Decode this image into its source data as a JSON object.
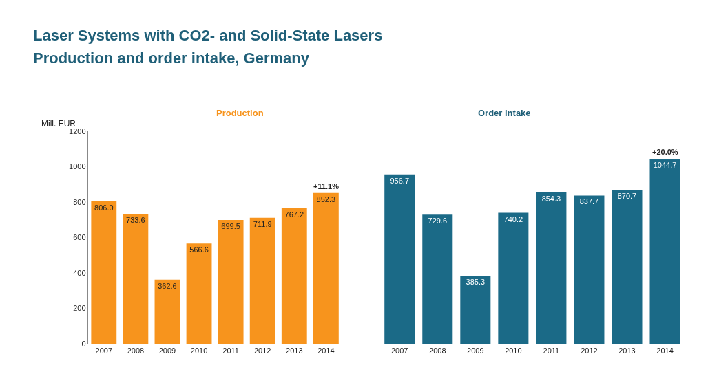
{
  "chart_data": [
    {
      "type": "bar",
      "title": "Production",
      "ylabel": "Mill. EUR",
      "annotations": [
        "Laser Systems with CO2- and Solid-State Lasers",
        "Production and order intake, Germany",
        {
          "text": "+11.1%",
          "x": "2014",
          "y": 852.3
        }
      ],
      "categories": [
        "2007",
        "2008",
        "2009",
        "2010",
        "2011",
        "2012",
        "2013",
        "2014"
      ],
      "values": [
        806.0,
        733.6,
        362.6,
        566.6,
        699.5,
        711.9,
        767.2,
        852.3
      ],
      "value_labels": [
        "806.0",
        "733.6",
        "362.6",
        "566.6",
        "699.5",
        "711.9",
        "767.2",
        "852.3"
      ],
      "color": "#f7941d",
      "ylim": [
        0,
        1200
      ],
      "yticks": [
        0,
        200,
        400,
        600,
        800,
        1000,
        1200
      ]
    },
    {
      "type": "bar",
      "title": "Order intake",
      "annotations": [
        {
          "text": "+20.0%",
          "x": "2014",
          "y": 1044.7
        }
      ],
      "categories": [
        "2007",
        "2008",
        "2009",
        "2010",
        "2011",
        "2012",
        "2013",
        "2014"
      ],
      "values": [
        956.7,
        729.6,
        385.3,
        740.2,
        854.3,
        837.7,
        870.7,
        1044.7
      ],
      "value_labels": [
        "956.7",
        "729.6",
        "385.3",
        "740.2",
        "854.3",
        "837.7",
        "870.7",
        "1044.7"
      ],
      "color": "#1b6a87",
      "ylim": [
        0,
        1200
      ],
      "tick_labels": "x"
    }
  ]
}
